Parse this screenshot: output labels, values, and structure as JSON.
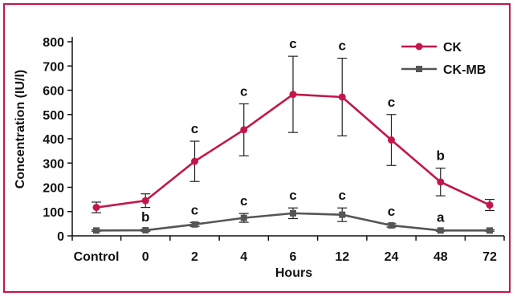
{
  "chart_data": {
    "type": "line",
    "xlabel": "Hours",
    "ylabel": "Concentration (IU/l)",
    "categories": [
      "Control",
      "0",
      "2",
      "4",
      "6",
      "12",
      "24",
      "48",
      "72"
    ],
    "ylim": [
      0,
      800
    ],
    "yticks": [
      0,
      100,
      200,
      300,
      400,
      500,
      600,
      700,
      800
    ],
    "grid": false,
    "legend_position": "top-right",
    "series": [
      {
        "name": "CK",
        "color": "#c4164a",
        "marker": "circle",
        "values": [
          117,
          145,
          307,
          437,
          583,
          572,
          395,
          222,
          127
        ],
        "errors": [
          22,
          28,
          83,
          107,
          157,
          160,
          105,
          57,
          23
        ],
        "significance": [
          "",
          "",
          "c",
          "c",
          "c",
          "c",
          "c",
          "b",
          ""
        ]
      },
      {
        "name": "CK-MB",
        "color": "#555555",
        "marker": "square",
        "values": [
          22,
          23,
          47,
          74,
          93,
          87,
          43,
          22,
          22
        ],
        "errors": [
          3,
          4,
          8,
          18,
          22,
          28,
          7,
          3,
          3
        ],
        "significance": [
          "",
          "b",
          "c",
          "c",
          "c",
          "c",
          "c",
          "a",
          ""
        ]
      }
    ]
  }
}
